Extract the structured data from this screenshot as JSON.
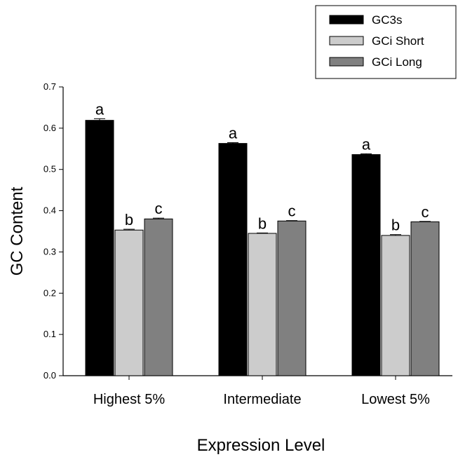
{
  "chart_data": {
    "type": "bar",
    "title": "",
    "xlabel": "Expression Level",
    "ylabel": "GC Content",
    "ylim": [
      0,
      0.7
    ],
    "yticks": [
      "0.0",
      "0.1",
      "0.2",
      "0.3",
      "0.4",
      "0.5",
      "0.6",
      "0.7"
    ],
    "categories": [
      "Highest 5%",
      "Intermediate",
      "Lowest 5%"
    ],
    "series": [
      {
        "name": "GC3s",
        "color": "#000000",
        "values": [
          0.619,
          0.563,
          0.536
        ],
        "errors": [
          0.004,
          0.002,
          0.002
        ],
        "labels": [
          "a",
          "a",
          "a"
        ]
      },
      {
        "name": "GCi Short",
        "color": "#cccccc",
        "values": [
          0.353,
          0.345,
          0.34
        ],
        "errors": [
          0.002,
          0.001,
          0.002
        ],
        "labels": [
          "b",
          "b",
          "b"
        ]
      },
      {
        "name": "GCi Long",
        "color": "#808080",
        "values": [
          0.38,
          0.375,
          0.373
        ],
        "errors": [
          0.002,
          0.001,
          0.001
        ],
        "labels": [
          "c",
          "c",
          "c"
        ]
      }
    ],
    "legend_position": "top-right",
    "grid": false
  }
}
